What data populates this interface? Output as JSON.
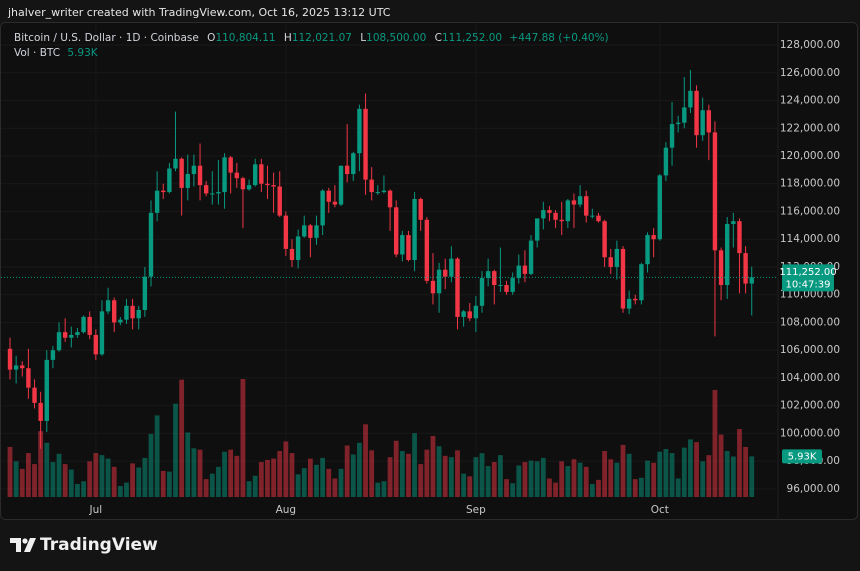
{
  "watermark": "jhalver_writer created with TradingView.com, Oct 16, 2025 13:12 UTC",
  "logo": "TradingView",
  "chart_data": {
    "type": "candlestick",
    "title": "Bitcoin / U.S. Dollar · 1D · Coinbase",
    "ohlc_labels": {
      "open": "O",
      "high": "H",
      "low": "L",
      "close": "C"
    },
    "last_labels": {
      "open": "110,804.11",
      "high": "112,021.07",
      "low": "108,500.00",
      "close": "111,252.00",
      "change": "+447.88 (+0.40%)"
    },
    "countdown": "10:47:39",
    "up_color": "#089981",
    "down_color": "#f23645",
    "grid": true,
    "categories": [
      null,
      null,
      null,
      null,
      null,
      null,
      null,
      null,
      null,
      null,
      null,
      null,
      null,
      null,
      "Jul",
      null,
      null,
      null,
      null,
      null,
      null,
      null,
      null,
      null,
      null,
      null,
      null,
      null,
      null,
      null,
      null,
      null,
      null,
      null,
      null,
      null,
      null,
      null,
      null,
      null,
      null,
      null,
      null,
      null,
      null,
      "Aug",
      null,
      null,
      null,
      null,
      null,
      null,
      null,
      null,
      null,
      null,
      null,
      null,
      null,
      null,
      null,
      null,
      null,
      null,
      null,
      null,
      null,
      null,
      null,
      null,
      null,
      null,
      null,
      null,
      null,
      null,
      "Sep",
      null,
      null,
      null,
      null,
      null,
      null,
      null,
      null,
      null,
      null,
      null,
      null,
      null,
      null,
      null,
      null,
      null,
      null,
      null,
      null,
      null,
      null,
      null,
      null,
      null,
      null,
      null,
      null,
      null,
      "Oct",
      null,
      null,
      null,
      null,
      null,
      null,
      null,
      null,
      null,
      null,
      null,
      null,
      null,
      null,
      null
    ],
    "open": [
      106100,
      104600,
      104900,
      104700,
      103300,
      102200,
      100900,
      105300,
      106000,
      107300,
      106900,
      107100,
      107300,
      108400,
      107100,
      105700,
      108800,
      109600,
      108000,
      108200,
      109200,
      108300,
      108900,
      111300,
      115900,
      117500,
      117400,
      119100,
      119800,
      117700,
      118700,
      119300,
      117900,
      117300,
      117300,
      117400,
      119900,
      118800,
      118400,
      117600,
      117900,
      119400,
      118000,
      117900,
      117800,
      115700,
      113300,
      112500,
      114200,
      115000,
      114100,
      115000,
      117500,
      116700,
      116500,
      119300,
      118700,
      120200,
      123400,
      118300,
      117400,
      117400,
      117500,
      116300,
      112900,
      114300,
      112500,
      116900,
      115400,
      111000,
      110100,
      111800,
      111300,
      112600,
      108400,
      108800,
      108300,
      109200,
      111200,
      111700,
      110700,
      110700,
      110200,
      111200,
      112100,
      111500,
      113900,
      115500,
      116100,
      115900,
      115400,
      115300,
      116800,
      116500,
      117100,
      115700,
      115700,
      115300,
      112700,
      112000,
      113300,
      109000,
      109700,
      109600,
      112200,
      114300,
      114000,
      118600,
      120600,
      122300,
      122400,
      123500,
      124700,
      121500,
      123300,
      121700,
      113200,
      110700,
      115100,
      115300,
      113000,
      110804.11
    ],
    "high": [
      106900,
      105600,
      105200,
      106100,
      103900,
      103000,
      106000,
      106300,
      108000,
      108300,
      107700,
      107600,
      108500,
      108800,
      107500,
      109600,
      110500,
      109800,
      108400,
      109700,
      109700,
      109200,
      112000,
      116800,
      118900,
      118000,
      119500,
      123200,
      119900,
      120100,
      120100,
      120900,
      118200,
      118900,
      119700,
      120200,
      120000,
      119500,
      118500,
      118300,
      119800,
      119800,
      119300,
      118800,
      118900,
      116000,
      114000,
      114700,
      115700,
      115100,
      115700,
      117600,
      117700,
      117900,
      119300,
      122300,
      120300,
      123700,
      124500,
      119200,
      117900,
      118600,
      117600,
      116800,
      114600,
      114600,
      117400,
      117000,
      115600,
      113000,
      112300,
      112600,
      113500,
      112700,
      108900,
      109400,
      109900,
      111700,
      112600,
      111800,
      113400,
      111000,
      111600,
      112900,
      113200,
      114300,
      115500,
      116700,
      116400,
      116100,
      116700,
      116900,
      117300,
      117900,
      117500,
      116200,
      115900,
      115400,
      113300,
      113900,
      113500,
      110300,
      110000,
      112300,
      114500,
      114800,
      118700,
      121000,
      123900,
      122900,
      125700,
      126200,
      125100,
      124200,
      123700,
      122500,
      113400,
      115600,
      115900,
      115500,
      113500,
      112021.07
    ],
    "low": [
      103900,
      103600,
      104100,
      102500,
      101800,
      98900,
      100100,
      104700,
      105900,
      106600,
      106200,
      106900,
      107200,
      106800,
      105300,
      105600,
      108600,
      107300,
      107800,
      107900,
      107500,
      107500,
      108400,
      110600,
      115300,
      116900,
      117300,
      118900,
      115700,
      116800,
      117800,
      116800,
      117100,
      116500,
      116500,
      116200,
      117300,
      117700,
      114800,
      117500,
      117800,
      117400,
      116900,
      115900,
      115600,
      112800,
      112000,
      111900,
      114100,
      112700,
      113600,
      114300,
      115900,
      116300,
      116400,
      118100,
      118200,
      118900,
      117200,
      116800,
      117200,
      117300,
      114600,
      112700,
      112400,
      112400,
      111700,
      114600,
      110800,
      109300,
      108700,
      110400,
      110900,
      107500,
      107700,
      108100,
      107300,
      108700,
      110600,
      109300,
      110200,
      110000,
      110000,
      110800,
      110900,
      111400,
      113400,
      114700,
      115300,
      114800,
      114300,
      114800,
      114800,
      116300,
      115200,
      115500,
      115200,
      112000,
      111500,
      111100,
      108700,
      108600,
      109300,
      109300,
      111600,
      112700,
      113900,
      118200,
      119300,
      121700,
      122000,
      123100,
      120600,
      121100,
      119700,
      107000,
      109600,
      109700,
      113400,
      110100,
      110100,
      108500
    ],
    "close": [
      104600,
      104900,
      104700,
      103300,
      102200,
      100900,
      105300,
      106000,
      107300,
      106900,
      107100,
      107300,
      108400,
      107100,
      105700,
      108800,
      109600,
      108000,
      108200,
      109200,
      108300,
      108900,
      111300,
      115900,
      117500,
      117400,
      119100,
      119800,
      117700,
      118700,
      119300,
      117900,
      117300,
      117300,
      117400,
      119900,
      118800,
      118400,
      117600,
      117900,
      119400,
      118000,
      117900,
      117800,
      115700,
      113300,
      112500,
      114200,
      115000,
      114100,
      115000,
      117500,
      116700,
      116500,
      119300,
      118700,
      120200,
      123400,
      118300,
      117400,
      117400,
      117500,
      116300,
      112900,
      114300,
      112500,
      116900,
      115400,
      111000,
      110100,
      111800,
      111300,
      112600,
      108400,
      108800,
      108300,
      109200,
      111200,
      111700,
      110700,
      110700,
      110200,
      111200,
      112100,
      111500,
      113900,
      115500,
      116100,
      115900,
      115400,
      115300,
      116800,
      116500,
      117100,
      115700,
      115700,
      115300,
      112700,
      112000,
      113300,
      109000,
      109700,
      109600,
      112200,
      114300,
      114000,
      118600,
      120600,
      122300,
      122400,
      123500,
      124700,
      121500,
      123300,
      121700,
      113200,
      110700,
      115100,
      115300,
      113000,
      110800,
      111252
    ],
    "volume": {
      "name": "Vol · BTC",
      "last_label": "5.93K",
      "values": [
        7300,
        5200,
        4100,
        6400,
        4800,
        9600,
        7900,
        5100,
        6300,
        4800,
        4000,
        1900,
        2300,
        5200,
        6400,
        6100,
        5600,
        4400,
        1600,
        2100,
        4900,
        4300,
        5700,
        9200,
        11900,
        3800,
        3700,
        13600,
        17100,
        9400,
        7100,
        6900,
        2600,
        3400,
        4400,
        6600,
        6900,
        6000,
        17200,
        2300,
        3100,
        5100,
        5400,
        5600,
        6700,
        8100,
        6400,
        3300,
        4200,
        5600,
        4700,
        5700,
        4100,
        2700,
        4100,
        7500,
        6200,
        7900,
        10600,
        6800,
        2100,
        2300,
        5800,
        8200,
        6700,
        6300,
        9300,
        4800,
        6900,
        8900,
        7400,
        6000,
        5800,
        6800,
        3400,
        3000,
        5800,
        6400,
        4500,
        5100,
        6100,
        2600,
        2000,
        4600,
        5100,
        5300,
        5200,
        5700,
        2700,
        2100,
        5200,
        4500,
        5500,
        5000,
        4400,
        1900,
        2500,
        6700,
        5500,
        5000,
        7600,
        6300,
        2600,
        2800,
        5300,
        5000,
        6600,
        7000,
        6400,
        2700,
        7200,
        8400,
        8000,
        5200,
        6100,
        15600,
        9100,
        6700,
        5900,
        9900,
        7300,
        5930
      ]
    },
    "ylim": [
      95200,
      129660
    ],
    "yticks": [
      {
        "value": 96000,
        "label": "96,000.00"
      },
      {
        "value": 98000,
        "label": "98,000.00"
      },
      {
        "value": 100000,
        "label": "100,000.00"
      },
      {
        "value": 102000,
        "label": "102,000.00"
      },
      {
        "value": 104000,
        "label": "104,000.00"
      },
      {
        "value": 106000,
        "label": "106,000.00"
      },
      {
        "value": 108000,
        "label": "108,000.00"
      },
      {
        "value": 110000,
        "label": "110,000.00"
      },
      {
        "value": 112000,
        "label": "112,000.00"
      },
      {
        "value": 114000,
        "label": "114,000.00"
      },
      {
        "value": 116000,
        "label": "116,000.00"
      },
      {
        "value": 118000,
        "label": "118,000.00"
      },
      {
        "value": 120000,
        "label": "120,000.00"
      },
      {
        "value": 122000,
        "label": "122,000.00"
      },
      {
        "value": 124000,
        "label": "124,000.00"
      },
      {
        "value": 126000,
        "label": "126,000.00"
      },
      {
        "value": 128000,
        "label": "128,000.00"
      }
    ]
  }
}
